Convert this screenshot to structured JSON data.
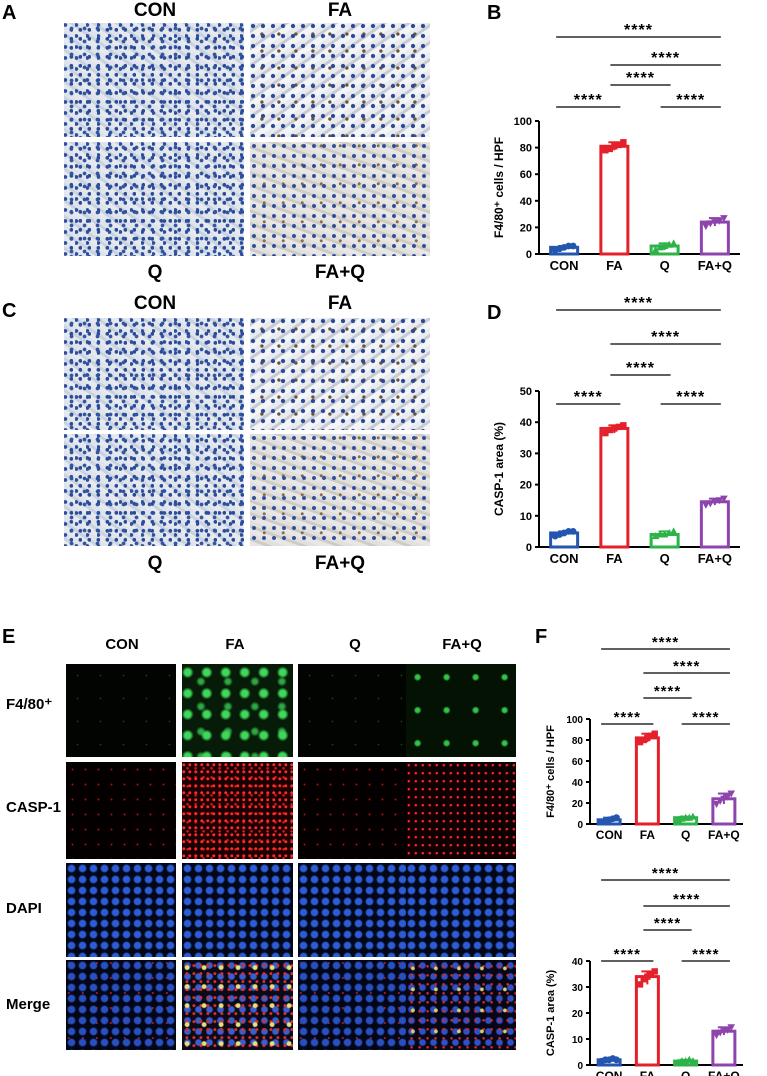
{
  "panel_letters": {
    "a": "A",
    "b": "B",
    "c": "C",
    "d": "D",
    "e": "E",
    "f": "F"
  },
  "groups": [
    "CON",
    "FA",
    "Q",
    "FA+Q"
  ],
  "ihc_labels": {
    "con": "CON",
    "fa": "FA",
    "q": "Q",
    "faq": "FA+Q"
  },
  "if_columns": [
    "CON",
    "FA",
    "Q",
    "FA+Q"
  ],
  "if_rows": [
    "F4/80⁺",
    "CASP-1",
    "DAPI",
    "Merge"
  ],
  "significance": "****",
  "colors": {
    "CON": "#2456b0",
    "FA": "#e4202a",
    "Q": "#2db34a",
    "FA+Q": "#8e44ad"
  },
  "chart_data": [
    {
      "id": "B",
      "type": "bar",
      "categories": [
        "CON",
        "FA",
        "Q",
        "FA+Q"
      ],
      "values": [
        5,
        81,
        6,
        24
      ],
      "points": [
        [
          3,
          4,
          5,
          6,
          6
        ],
        [
          78,
          79,
          81,
          82,
          84
        ],
        [
          3,
          5,
          6,
          7,
          8
        ],
        [
          21,
          23,
          24,
          25,
          27
        ]
      ],
      "ylabel": "F4/80⁺ cells / HPF",
      "ylim": [
        0,
        100
      ],
      "yticks": [
        0,
        20,
        40,
        60,
        80,
        100
      ],
      "comparisons": [
        [
          0,
          3
        ],
        [
          1,
          3
        ],
        [
          1,
          2
        ],
        [
          0,
          1
        ],
        [
          2,
          3
        ]
      ]
    },
    {
      "id": "D",
      "type": "bar",
      "categories": [
        "CON",
        "FA",
        "Q",
        "FA+Q"
      ],
      "values": [
        4.5,
        38,
        4,
        14.5
      ],
      "points": [
        [
          3.5,
          4,
          4.5,
          5,
          5
        ],
        [
          36.5,
          37.5,
          38,
          38.5,
          39
        ],
        [
          3.5,
          4,
          4,
          4.5,
          5
        ],
        [
          13.5,
          14,
          14.5,
          15,
          15.5
        ]
      ],
      "ylabel": "CASP-1 area (%)",
      "ylim": [
        0,
        50
      ],
      "yticks": [
        0,
        10,
        20,
        30,
        40,
        50
      ],
      "comparisons": [
        [
          0,
          3
        ],
        [
          1,
          3
        ],
        [
          1,
          2
        ],
        [
          0,
          1
        ],
        [
          2,
          3
        ]
      ]
    },
    {
      "id": "F1",
      "type": "bar",
      "categories": [
        "CON",
        "FA",
        "Q",
        "FA+Q"
      ],
      "values": [
        4,
        82,
        6,
        24
      ],
      "points": [
        [
          2,
          3,
          4,
          5,
          6
        ],
        [
          78,
          80,
          82,
          84,
          86
        ],
        [
          4,
          5,
          6,
          6,
          7
        ],
        [
          19,
          22,
          24,
          26,
          29
        ]
      ],
      "ylabel": "F4/80⁺ cells / HPF",
      "ylim": [
        0,
        100
      ],
      "yticks": [
        0,
        20,
        40,
        60,
        80,
        100
      ],
      "comparisons": [
        [
          0,
          3
        ],
        [
          1,
          3
        ],
        [
          1,
          2
        ],
        [
          0,
          1
        ],
        [
          2,
          3
        ]
      ]
    },
    {
      "id": "F2",
      "type": "bar",
      "categories": [
        "CON",
        "FA",
        "Q",
        "FA+Q"
      ],
      "values": [
        2,
        34,
        1.5,
        13
      ],
      "points": [
        [
          1.5,
          2,
          2,
          2.5,
          2
        ],
        [
          31,
          33,
          34,
          35,
          36
        ],
        [
          1,
          1.5,
          1.5,
          2,
          1.5
        ],
        [
          11.5,
          12.5,
          13,
          13.5,
          14.5
        ]
      ],
      "ylabel": "CASP-1 area (%)",
      "ylim": [
        0,
        40
      ],
      "yticks": [
        0,
        10,
        20,
        30,
        40
      ],
      "comparisons": [
        [
          0,
          3
        ],
        [
          1,
          3
        ],
        [
          1,
          2
        ],
        [
          0,
          1
        ],
        [
          2,
          3
        ]
      ]
    }
  ]
}
